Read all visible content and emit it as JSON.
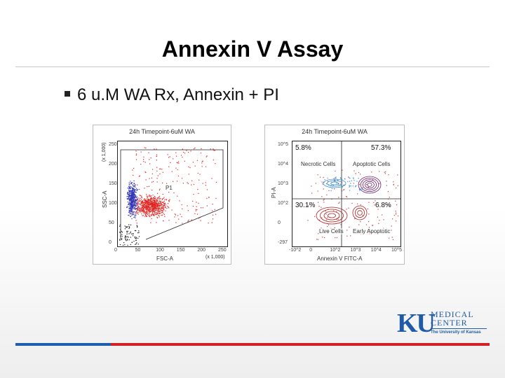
{
  "slide": {
    "title": "Annexin V Assay",
    "bullet": "6 u.M WA Rx, Annexin + PI"
  },
  "left_plot": {
    "title": "24h Timepoint-6uM WA",
    "y_label": "SSC-A",
    "x_label": "FSC-A",
    "x_unit": "(x 1,000)",
    "y_unit": "(x 1,000)",
    "x_ticks": [
      "0",
      "50",
      "100",
      "150",
      "200",
      "250"
    ],
    "y_ticks": [
      "0",
      "50",
      "100",
      "150",
      "200",
      "250"
    ],
    "gate_label": "P1"
  },
  "right_plot": {
    "title": "24h Timepoint-6uM WA",
    "y_label": "PI-A",
    "x_label": "Annexin V FITC-A",
    "x_ticks": [
      "-10^2",
      "0",
      "10^2",
      "10^3",
      "10^4",
      "10^5"
    ],
    "y_ticks": [
      "-297",
      "0",
      "10^2",
      "10^3",
      "10^4",
      "10^5"
    ],
    "quadrants": {
      "top_left": {
        "percent": "5.8%",
        "label": "Necrotic Cells"
      },
      "top_right": {
        "percent": "57.3%",
        "label": "Apoptotic Cells"
      },
      "bottom_left": {
        "percent": "30.1%",
        "label": "Live Cells"
      },
      "bottom_right": {
        "percent": "6.8%",
        "label": "Early Apoptotic"
      }
    }
  },
  "logo": {
    "mark": "KU",
    "line1": "MEDICAL",
    "line2": "CENTER",
    "line3": "The University of Kansas"
  },
  "colors": {
    "title_text": "#000000",
    "footer_blue": "#1d5fad",
    "footer_red": "#d1222a",
    "logo_blue": "#1f5aa8",
    "dot_red": "#e0221f",
    "dot_blue": "#2f35b8"
  }
}
